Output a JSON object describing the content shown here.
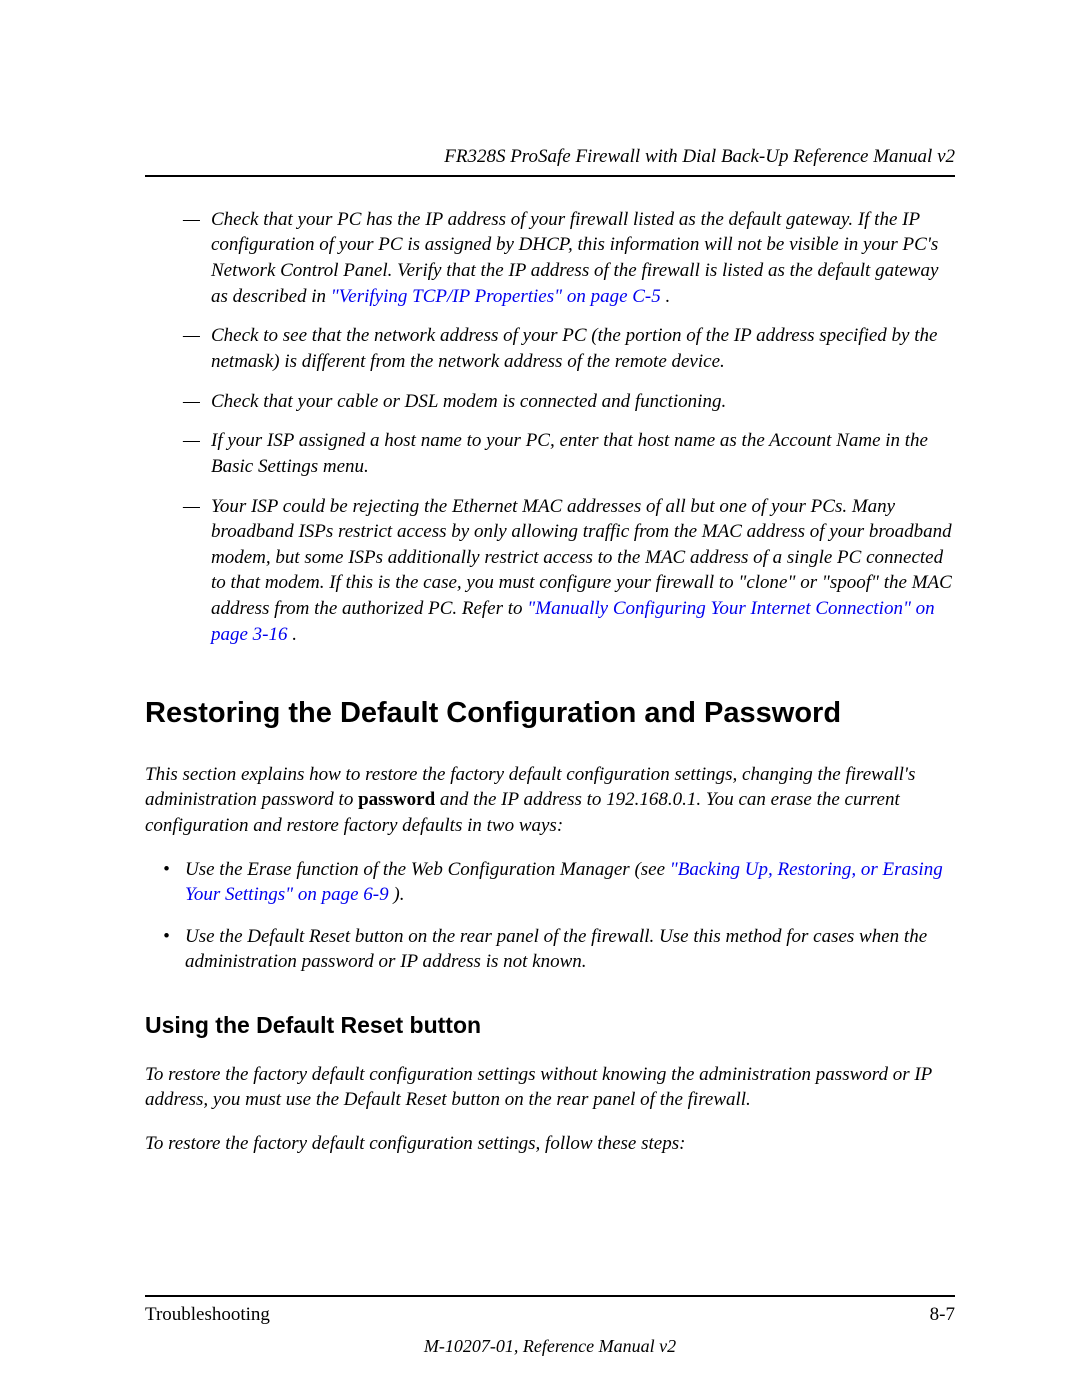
{
  "header": {
    "running": "FR328S ProSafe Firewall with Dial Back-Up Reference Manual v2"
  },
  "colors": {
    "text": "#000000",
    "link": "#0000ee",
    "rule": "#000000",
    "background": "#ffffff"
  },
  "typography": {
    "body_family": "Times New Roman",
    "body_size_pt": 11,
    "body_style": "italic",
    "heading_family": "Arial",
    "h2_size_pt": 17,
    "h3_size_pt": 13
  },
  "dash_items": [
    {
      "pre": "Check that your PC has the IP address of your firewall listed as the default gateway. If the IP configuration of your PC is assigned by DHCP, this information will not be visible in your PC's Network Control Panel. Verify that the IP address of the firewall is listed as the default gateway as described in ",
      "link": "\"Verifying TCP/IP Properties\" on page C-5",
      "post": "."
    },
    {
      "pre": "Check to see that the network address of your PC (the portion of the IP address specified by the netmask) is different from the network address of the remote device.",
      "link": "",
      "post": ""
    },
    {
      "pre": "Check that your cable or DSL modem is connected and functioning.",
      "link": "",
      "post": ""
    },
    {
      "pre": "If your ISP assigned a host name to your PC, enter that host name as the Account Name in the Basic Settings menu.",
      "link": "",
      "post": ""
    },
    {
      "pre": "Your ISP could be rejecting the Ethernet MAC addresses of all but one of your PCs. Many broadband ISPs restrict access by only allowing traffic from the MAC address of your broadband modem, but some ISPs additionally restrict access to the MAC address of a single PC connected to that modem. If this is the case, you must configure your firewall to \"clone\" or \"spoof\" the MAC address from the authorized PC. Refer to ",
      "link": "\"Manually Configuring Your Internet Connection\" on page 3-16",
      "post": "."
    }
  ],
  "h2": "Restoring the Default Configuration and Password",
  "intro": {
    "a": "This section explains how to restore the factory default configuration settings, changing the firewall's administration password to ",
    "bold": "password",
    "b": " and the IP address to 192.168.0.1. You can erase the current configuration and restore factory defaults in two ways:"
  },
  "bullets": [
    {
      "pre": "Use the Erase function of the Web Configuration Manager (see ",
      "link": "\"Backing Up, Restoring, or Erasing Your Settings\" on page 6-9",
      "post": ")."
    },
    {
      "pre": "Use the Default Reset button on the rear panel of the firewall. Use this method for cases when the administration password or IP address is not known.",
      "link": "",
      "post": ""
    }
  ],
  "h3": "Using the Default Reset button",
  "p1": "To restore the factory default configuration settings without knowing the administration password or IP address, you must use the Default Reset button on the rear panel of the firewall.",
  "p2": "To restore the factory default configuration settings, follow these steps:",
  "footer": {
    "left": "Troubleshooting",
    "right": "8-7",
    "docid": "M-10207-01, Reference Manual v2"
  }
}
